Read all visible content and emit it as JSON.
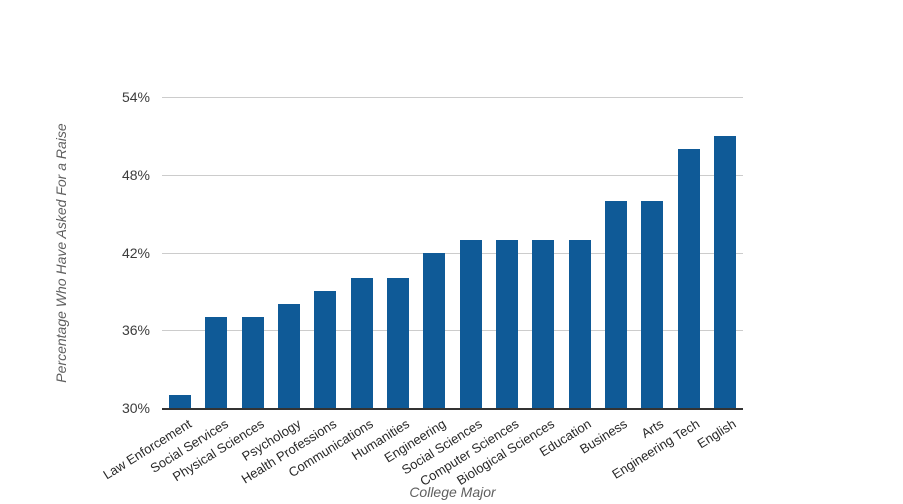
{
  "page": {
    "background": "#ffffff"
  },
  "chart_data": {
    "type": "bar",
    "title": "",
    "xlabel": "College Major",
    "ylabel": "Percentage Who Have Asked For a Raise",
    "categories": [
      "Law Enforcement",
      "Social Services",
      "Physical Sciences",
      "Psychology",
      "Health Professions",
      "Communications",
      "Humanities",
      "Engineering",
      "Social Sciences",
      "Computer Sciences",
      "Biological Sciences",
      "Education",
      "Business",
      "Arts",
      "Engineering Tech",
      "English"
    ],
    "values": [
      31,
      37,
      37,
      38,
      39,
      40,
      40,
      42,
      43,
      43,
      43,
      43,
      46,
      46,
      50,
      51
    ],
    "value_unit": "%",
    "ylim": [
      30,
      54
    ],
    "yticks": [
      {
        "value": 30,
        "label": "30%"
      },
      {
        "value": 36,
        "label": "36%"
      },
      {
        "value": 42,
        "label": "42%"
      },
      {
        "value": 48,
        "label": "48%"
      },
      {
        "value": 54,
        "label": "54%"
      }
    ],
    "grid": true,
    "legend": "none",
    "colors": {
      "bar": "#0f5a97",
      "gridline": "#cccccc",
      "axis_line": "#333333",
      "tick_text": "#3c3c3c",
      "category_text": "#282828",
      "axis_title_text": "#5f5f5f"
    }
  }
}
